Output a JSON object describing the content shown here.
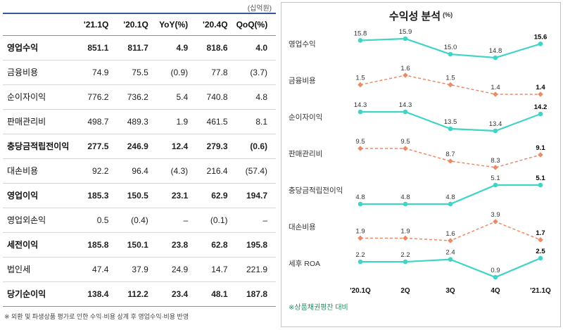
{
  "page": {
    "table_unit": "(십억원)",
    "table_footnote": "※ 외환 및 파생상품 평가로 인한 수익·비용 상계 후 영업수익·비용 반영",
    "chart_title": "수익성 분석",
    "chart_unit": "(%)",
    "chart_footnote": "※상품채권평잔 대비"
  },
  "palette": {
    "positive_blue": "#0000cd",
    "negative_red": "#e03228",
    "teal": "#3fd4c6",
    "orange": "#ec8a66"
  },
  "chart_data": [
    {
      "type": "table",
      "unit": "(십억원)",
      "columns": [
        "'21.1Q",
        "'20.1Q",
        "YoY(%)",
        "'20.4Q",
        "QoQ(%)"
      ],
      "rows": [
        {
          "label": "영업수익",
          "bold": true,
          "values": [
            "851.1",
            "811.7",
            "4.9",
            "818.6",
            "4.0"
          ],
          "colors": [
            "k",
            "k",
            "b",
            "k",
            "b"
          ]
        },
        {
          "label": "금융비용",
          "bold": false,
          "values": [
            "74.9",
            "75.5",
            "(0.9)",
            "77.8",
            "(3.7)"
          ],
          "colors": [
            "k",
            "k",
            "r",
            "k",
            "r"
          ]
        },
        {
          "label": "순이자이익",
          "bold": false,
          "values": [
            "776.2",
            "736.2",
            "5.4",
            "740.8",
            "4.8"
          ],
          "colors": [
            "k",
            "k",
            "b",
            "k",
            "b"
          ]
        },
        {
          "label": "판매관리비",
          "bold": false,
          "values": [
            "498.7",
            "489.3",
            "1.9",
            "461.5",
            "8.1"
          ],
          "colors": [
            "k",
            "k",
            "b",
            "k",
            "b"
          ]
        },
        {
          "label": "충당금적립전이익",
          "bold": true,
          "values": [
            "277.5",
            "246.9",
            "12.4",
            "279.3",
            "(0.6)"
          ],
          "colors": [
            "k",
            "k",
            "b",
            "k",
            "r"
          ]
        },
        {
          "label": "대손비용",
          "bold": false,
          "values": [
            "92.2",
            "96.4",
            "(4.3)",
            "216.4",
            "(57.4)"
          ],
          "colors": [
            "k",
            "k",
            "r",
            "k",
            "r"
          ]
        },
        {
          "label": "영업이익",
          "bold": true,
          "values": [
            "185.3",
            "150.5",
            "23.1",
            "62.9",
            "194.7"
          ],
          "colors": [
            "k",
            "k",
            "b",
            "k",
            "b"
          ]
        },
        {
          "label": "영업외손익",
          "bold": false,
          "values": [
            "0.5",
            "(0.4)",
            "–",
            "(0.1)",
            "–"
          ],
          "colors": [
            "k",
            "r",
            "b",
            "r",
            "b"
          ]
        },
        {
          "label": "세전이익",
          "bold": true,
          "values": [
            "185.8",
            "150.1",
            "23.8",
            "62.8",
            "195.8"
          ],
          "colors": [
            "k",
            "k",
            "b",
            "k",
            "b"
          ]
        },
        {
          "label": "법인세",
          "bold": false,
          "values": [
            "47.4",
            "37.9",
            "24.9",
            "14.7",
            "221.9"
          ],
          "colors": [
            "k",
            "k",
            "b",
            "k",
            "b"
          ]
        },
        {
          "label": "당기순이익",
          "bold": true,
          "values": [
            "138.4",
            "112.2",
            "23.4",
            "48.1",
            "187.8"
          ],
          "colors": [
            "k",
            "k",
            "b",
            "k",
            "b"
          ]
        }
      ]
    },
    {
      "type": "line",
      "title": "수익성 분석",
      "unit": "(%)",
      "x": [
        "'20.1Q",
        "2Q",
        "3Q",
        "4Q",
        "'21.1Q"
      ],
      "series": [
        {
          "name": "영업수익",
          "style": "teal",
          "values": [
            15.8,
            15.9,
            15.0,
            14.8,
            15.6
          ]
        },
        {
          "name": "금융비용",
          "style": "orange",
          "values": [
            1.5,
            1.6,
            1.5,
            1.4,
            1.4
          ]
        },
        {
          "name": "순이자이익",
          "style": "teal",
          "values": [
            14.3,
            14.3,
            13.5,
            13.4,
            14.2
          ]
        },
        {
          "name": "판매관리비",
          "style": "orange",
          "values": [
            9.5,
            9.5,
            8.7,
            8.3,
            9.1
          ]
        },
        {
          "name": "충당금적립전이익",
          "style": "teal",
          "values": [
            4.8,
            4.8,
            4.8,
            5.1,
            5.1
          ]
        },
        {
          "name": "대손비용",
          "style": "orange",
          "values": [
            1.9,
            1.9,
            1.6,
            3.9,
            1.7
          ]
        },
        {
          "name": "세후 ROA",
          "style": "teal",
          "values": [
            2.2,
            2.2,
            2.4,
            0.9,
            2.5
          ]
        }
      ],
      "grid": false,
      "legend": "none"
    }
  ]
}
